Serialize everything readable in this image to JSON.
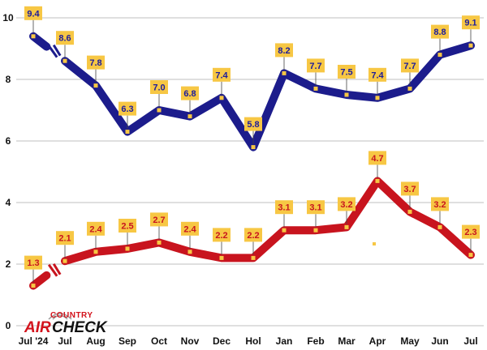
{
  "chart_data": {
    "type": "line",
    "categories": [
      "Jul '24",
      "Jul",
      "Aug",
      "Sep",
      "Oct",
      "Nov",
      "Dec",
      "Hol",
      "Jan",
      "Feb",
      "Mar",
      "Apr",
      "May",
      "Jun",
      "Jul"
    ],
    "ylim": [
      0,
      10
    ],
    "yticks": [
      0,
      2,
      4,
      6,
      8,
      10
    ],
    "grid": true,
    "legend": "none",
    "series": [
      {
        "values": [
          9.4,
          8.6,
          7.8,
          6.3,
          7.0,
          6.8,
          7.4,
          5.8,
          8.2,
          7.7,
          7.5,
          7.4,
          7.7,
          8.8,
          9.1
        ],
        "labels": [
          "9.4",
          "8.6",
          "7.8",
          "6.3",
          "7.0",
          "6.8",
          "7.4",
          "5.8",
          "8.2",
          "7.7",
          "7.5",
          "7.4",
          "7.7",
          "8.8",
          "9.1"
        ],
        "line_color": "#1c1c8c",
        "label_text_color": "#1c1c9c"
      },
      {
        "values": [
          1.3,
          2.1,
          2.4,
          2.5,
          2.7,
          2.4,
          2.2,
          2.2,
          3.1,
          3.1,
          3.2,
          4.7,
          3.7,
          3.2,
          2.3
        ],
        "labels": [
          "1.3",
          "2.1",
          "2.4",
          "2.5",
          "2.7",
          "2.4",
          "2.2",
          "2.2",
          "3.1",
          "3.1",
          "3.2",
          "4.7",
          "3.7",
          "3.2",
          "2.3"
        ],
        "line_color": "#c8141e",
        "label_text_color": "#c8141e"
      }
    ],
    "label_box_color": "#f7c744",
    "marker_color": "#f7c744"
  },
  "logo": {
    "line1": "COUNTRY",
    "line2a": "AIR",
    "line2b": "CHECK"
  }
}
